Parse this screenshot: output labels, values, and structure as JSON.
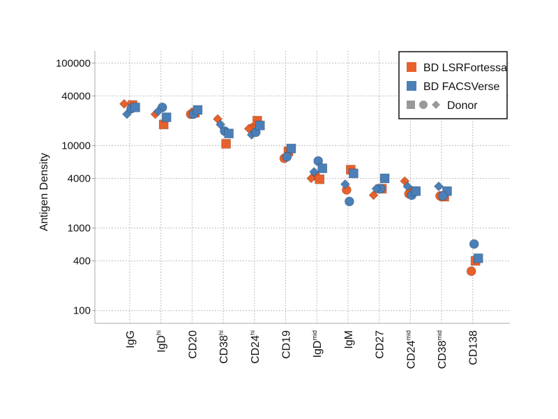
{
  "chart_data": {
    "type": "scatter",
    "ylabel": "Antigen Density",
    "yscale": "log",
    "ylim": [
      70,
      140000
    ],
    "yticks": [
      "100",
      "400",
      "1000",
      "4000",
      "10000",
      "40000",
      "100000"
    ],
    "grid": true,
    "legend_position": "top-right",
    "categories": [
      {
        "base": "IgG",
        "sup": ""
      },
      {
        "base": "IgD",
        "sup": "hi"
      },
      {
        "base": "CD20",
        "sup": ""
      },
      {
        "base": "CD38",
        "sup": "hi"
      },
      {
        "base": "CD24",
        "sup": "hi"
      },
      {
        "base": "CD19",
        "sup": ""
      },
      {
        "base": "IgD",
        "sup": "mid"
      },
      {
        "base": "IgM",
        "sup": ""
      },
      {
        "base": "CD27",
        "sup": ""
      },
      {
        "base": "CD24",
        "sup": "mid"
      },
      {
        "base": "CD38",
        "sup": "mid"
      },
      {
        "base": "CD138",
        "sup": ""
      }
    ],
    "legend": {
      "items": [
        "BD LSRFortessa",
        "BD FACSVerse",
        "Donor"
      ]
    },
    "colors": {
      "BD LSRFortessa": "#e8612c",
      "BD FACSVerse": "#4a7fb8",
      "Donor": "#999999"
    },
    "series": [
      {
        "name": "BD LSRFortessa",
        "points": [
          {
            "category": "IgG",
            "donor": "diamond",
            "value": 32000
          },
          {
            "category": "IgG",
            "donor": "square",
            "value": 31000
          },
          {
            "category": "IgD hi",
            "donor": "square",
            "value": 18000
          },
          {
            "category": "IgD hi",
            "donor": "diamond",
            "value": 24000
          },
          {
            "category": "CD20",
            "donor": "circle",
            "value": 24000
          },
          {
            "category": "CD20",
            "donor": "square",
            "value": 25000
          },
          {
            "category": "CD38 hi",
            "donor": "diamond",
            "value": 21000
          },
          {
            "category": "CD38 hi",
            "donor": "square",
            "value": 10500
          },
          {
            "category": "CD24 hi",
            "donor": "circle",
            "value": 16500
          },
          {
            "category": "CD24 hi",
            "donor": "square",
            "value": 20000
          },
          {
            "category": "CD24 hi",
            "donor": "diamond",
            "value": 16000
          },
          {
            "category": "CD19",
            "donor": "square",
            "value": 8500
          },
          {
            "category": "CD19",
            "donor": "circle",
            "value": 7000
          },
          {
            "category": "IgD mid",
            "donor": "circle",
            "value": 4300
          },
          {
            "category": "IgD mid",
            "donor": "diamond",
            "value": 4000
          },
          {
            "category": "IgD mid",
            "donor": "square",
            "value": 3900
          },
          {
            "category": "IgM",
            "donor": "square",
            "value": 5100
          },
          {
            "category": "IgM",
            "donor": "circle",
            "value": 2900
          },
          {
            "category": "CD27",
            "donor": "square",
            "value": 3000
          },
          {
            "category": "CD27",
            "donor": "diamond",
            "value": 2500
          },
          {
            "category": "CD24 mid",
            "donor": "diamond",
            "value": 3700
          },
          {
            "category": "CD24 mid",
            "donor": "square",
            "value": 2800
          },
          {
            "category": "CD24 mid",
            "donor": "circle",
            "value": 2600
          },
          {
            "category": "CD38 mid",
            "donor": "circle",
            "value": 2450
          },
          {
            "category": "CD38 mid",
            "donor": "square",
            "value": 2400
          },
          {
            "category": "CD138",
            "donor": "circle",
            "value": 300
          },
          {
            "category": "CD138",
            "donor": "square",
            "value": 400
          }
        ]
      },
      {
        "name": "BD FACSVerse",
        "points": [
          {
            "category": "IgG",
            "donor": "diamond",
            "value": 24000
          },
          {
            "category": "IgG",
            "donor": "circle",
            "value": 28000
          },
          {
            "category": "IgG",
            "donor": "square",
            "value": 29000
          },
          {
            "category": "IgD hi",
            "donor": "circle",
            "value": 29000
          },
          {
            "category": "IgD hi",
            "donor": "diamond",
            "value": 26000
          },
          {
            "category": "IgD hi",
            "donor": "square",
            "value": 22000
          },
          {
            "category": "CD20",
            "donor": "circle",
            "value": 24000
          },
          {
            "category": "CD20",
            "donor": "square",
            "value": 27000
          },
          {
            "category": "CD38 hi",
            "donor": "circle",
            "value": 15000
          },
          {
            "category": "CD38 hi",
            "donor": "diamond",
            "value": 18000
          },
          {
            "category": "CD38 hi",
            "donor": "square",
            "value": 14000
          },
          {
            "category": "CD24 hi",
            "donor": "diamond",
            "value": 13500
          },
          {
            "category": "CD24 hi",
            "donor": "circle",
            "value": 14500
          },
          {
            "category": "CD24 hi",
            "donor": "square",
            "value": 17500
          },
          {
            "category": "CD19",
            "donor": "square",
            "value": 9200
          },
          {
            "category": "CD19",
            "donor": "circle",
            "value": 7300
          },
          {
            "category": "IgD mid",
            "donor": "circle",
            "value": 6500
          },
          {
            "category": "IgD mid",
            "donor": "square",
            "value": 5300
          },
          {
            "category": "IgD mid",
            "donor": "diamond",
            "value": 4800
          },
          {
            "category": "IgM",
            "donor": "diamond",
            "value": 3400
          },
          {
            "category": "IgM",
            "donor": "circle",
            "value": 2100
          },
          {
            "category": "IgM",
            "donor": "square",
            "value": 4600
          },
          {
            "category": "CD27",
            "donor": "circle",
            "value": 3000
          },
          {
            "category": "CD27",
            "donor": "square",
            "value": 4000
          },
          {
            "category": "CD27",
            "donor": "diamond",
            "value": 3000
          },
          {
            "category": "CD24 mid",
            "donor": "diamond",
            "value": 3200
          },
          {
            "category": "CD24 mid",
            "donor": "circle",
            "value": 2500
          },
          {
            "category": "CD24 mid",
            "donor": "square",
            "value": 2800
          },
          {
            "category": "CD38 mid",
            "donor": "diamond",
            "value": 3200
          },
          {
            "category": "CD38 mid",
            "donor": "square",
            "value": 2800
          },
          {
            "category": "CD38 mid",
            "donor": "circle",
            "value": 2450
          },
          {
            "category": "CD138",
            "donor": "square",
            "value": 430
          },
          {
            "category": "CD138",
            "donor": "circle",
            "value": 640
          }
        ]
      }
    ]
  }
}
